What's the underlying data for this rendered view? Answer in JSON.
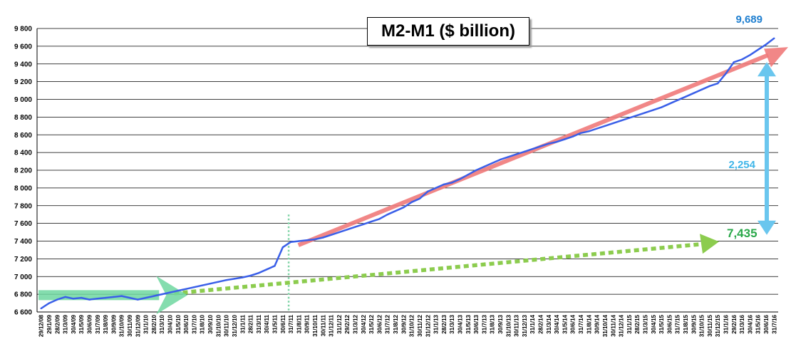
{
  "chart_data": {
    "type": "line",
    "title": "M2-M1 ($ billion)",
    "ylim": [
      6600,
      9800
    ],
    "y_ticks": [
      "6 600",
      "6 800",
      "7 000",
      "7 200",
      "7 400",
      "7 600",
      "7 800",
      "8 000",
      "8 200",
      "8 400",
      "8 600",
      "8 800",
      "9 000",
      "9 200",
      "9 400",
      "9 600",
      "9 800"
    ],
    "x_tick_labels": [
      "29/12/08",
      "29/1/09",
      "28/2/09",
      "31/3/09",
      "30/4/09",
      "31/5/09",
      "30/6/09",
      "31/7/09",
      "31/8/09",
      "30/9/09",
      "31/10/09",
      "30/11/09",
      "31/12/09",
      "31/1/10",
      "28/2/10",
      "31/3/10",
      "30/4/10",
      "31/5/10",
      "30/6/10",
      "31/7/10",
      "31/8/10",
      "30/9/10",
      "31/10/10",
      "30/11/10",
      "31/12/10",
      "31/1/11",
      "28/2/11",
      "31/3/11",
      "30/4/11",
      "31/5/11",
      "30/6/11",
      "31/7/11",
      "31/8/11",
      "30/9/11",
      "31/10/11",
      "30/11/11",
      "31/12/11",
      "31/1/12",
      "29/2/12",
      "31/3/12",
      "30/4/12",
      "31/5/12",
      "30/6/12",
      "31/7/12",
      "31/8/12",
      "30/9/12",
      "31/10/12",
      "30/11/12",
      "31/12/12",
      "31/1/13",
      "28/2/13",
      "31/3/13",
      "30/4/13",
      "31/5/13",
      "30/6/13",
      "31/7/13",
      "31/8/13",
      "30/9/13",
      "31/10/13",
      "30/11/13",
      "31/12/13",
      "31/1/14",
      "28/2/14",
      "31/3/14",
      "30/4/14",
      "31/5/14",
      "30/6/14",
      "31/7/14",
      "31/8/14",
      "30/9/14",
      "31/10/14",
      "30/11/14",
      "31/12/14",
      "31/1/15",
      "28/2/15",
      "31/3/15",
      "30/4/15",
      "31/5/15",
      "30/6/15",
      "31/7/15",
      "31/8/15",
      "30/9/15",
      "31/10/15",
      "30/11/15",
      "31/12/15",
      "31/1/16",
      "29/2/16",
      "31/3/16",
      "30/4/16",
      "31/5/16",
      "30/6/16",
      "31/7/16"
    ],
    "series": [
      {
        "color": "#3a5fe8",
        "x": [
          "29/12/08",
          "29/1/09",
          "28/2/09",
          "31/3/09",
          "30/4/09",
          "31/5/09",
          "30/6/09",
          "31/7/09",
          "31/8/09",
          "30/9/09",
          "31/10/09",
          "30/11/09",
          "31/12/09",
          "31/1/10",
          "28/2/10",
          "31/3/10",
          "30/4/10",
          "31/5/10",
          "30/6/10",
          "31/7/10",
          "31/8/10",
          "30/9/10",
          "31/10/10",
          "30/11/10",
          "31/12/10",
          "31/1/11",
          "28/2/11",
          "31/3/11",
          "30/4/11",
          "31/5/11",
          "30/6/11",
          "31/7/11",
          "31/8/11",
          "30/9/11",
          "31/10/11",
          "30/11/11",
          "31/12/11",
          "31/1/12",
          "29/2/12",
          "31/3/12",
          "30/4/12",
          "31/5/12",
          "30/6/12",
          "31/7/12",
          "31/8/12",
          "30/9/12",
          "31/10/12",
          "30/11/12",
          "31/12/12",
          "31/1/13",
          "28/2/13",
          "31/3/13",
          "30/4/13",
          "31/5/13",
          "30/6/13",
          "31/7/13",
          "31/8/13",
          "30/9/13",
          "31/10/13",
          "30/11/13",
          "31/12/13",
          "31/1/14",
          "28/2/14",
          "31/3/14",
          "30/4/14",
          "31/5/14",
          "30/6/14",
          "31/7/14",
          "31/8/14",
          "30/9/14",
          "31/10/14",
          "30/11/14",
          "31/12/14",
          "31/1/15",
          "28/2/15",
          "31/3/15",
          "30/4/15",
          "31/5/15",
          "30/6/15",
          "31/7/15",
          "31/8/15",
          "30/9/15",
          "31/10/15",
          "30/11/15",
          "31/12/15",
          "31/1/16",
          "29/2/16",
          "31/3/16",
          "30/4/16",
          "31/5/16",
          "30/6/16",
          "31/7/16"
        ],
        "values": [
          6640,
          6700,
          6740,
          6770,
          6750,
          6760,
          6740,
          6750,
          6760,
          6770,
          6780,
          6760,
          6740,
          6760,
          6780,
          6800,
          6820,
          6840,
          6860,
          6880,
          6900,
          6920,
          6940,
          6960,
          6975,
          6990,
          7010,
          7040,
          7080,
          7120,
          7330,
          7390,
          7400,
          7410,
          7420,
          7440,
          7470,
          7500,
          7530,
          7560,
          7590,
          7620,
          7650,
          7700,
          7740,
          7780,
          7840,
          7880,
          7960,
          8000,
          8040,
          8060,
          8100,
          8150,
          8200,
          8240,
          8280,
          8320,
          8350,
          8380,
          8410,
          8440,
          8470,
          8500,
          8520,
          8550,
          8580,
          8620,
          8640,
          8670,
          8700,
          8730,
          8760,
          8790,
          8820,
          8850,
          8880,
          8910,
          8950,
          8990,
          9030,
          9070,
          9110,
          9150,
          9180,
          9290,
          9420,
          9450,
          9500,
          9560,
          9620,
          9689
        ]
      }
    ],
    "annotations": {
      "end_value": "9,689",
      "difference": "2,254",
      "trend_value": "7,435"
    },
    "colors": {
      "line": "#3a5fe8",
      "red_trend": "#f07a7a",
      "green_trend": "#8ccc4e",
      "teal_arrow": "#6fd7a0",
      "cyan_arrow": "#6ac6ee",
      "dotted_vertical": "#7fd3a6",
      "label_blue": "#1f7fd0",
      "label_cyan": "#3fb5e8",
      "label_green": "#2aa84a"
    },
    "grid": true
  }
}
